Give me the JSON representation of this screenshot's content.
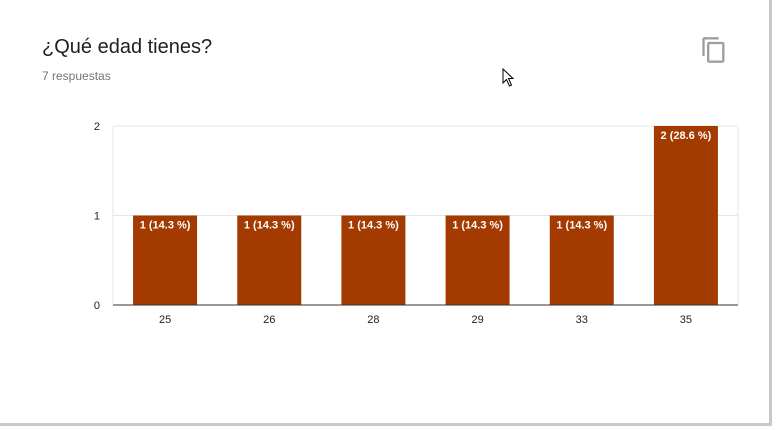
{
  "card": {
    "title": "¿Qué edad tienes?",
    "subtitle": "7 respuestas",
    "copy_icon": "copy-icon"
  },
  "colors": {
    "bar": "#a33a00",
    "grid": "#e6e6e6",
    "axis": "#333333"
  },
  "chart_data": {
    "type": "bar",
    "categories": [
      "25",
      "26",
      "28",
      "29",
      "33",
      "35"
    ],
    "values": [
      1,
      1,
      1,
      1,
      1,
      2
    ],
    "data_labels": [
      "1 (14.3 %)",
      "1 (14.3 %)",
      "1 (14.3 %)",
      "1 (14.3 %)",
      "1 (14.3 %)",
      "2 (28.6 %)"
    ],
    "yticks": [
      "0",
      "1",
      "2"
    ],
    "ylim": [
      0,
      2
    ],
    "grid": true,
    "legend": "none"
  }
}
